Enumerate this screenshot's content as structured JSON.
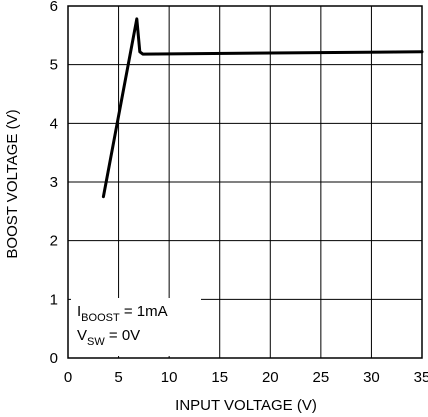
{
  "chart_data": {
    "type": "line",
    "xlabel": "INPUT VOLTAGE (V)",
    "ylabel": "BOOST VOLTAGE (V)",
    "xlim": [
      0,
      35
    ],
    "ylim": [
      0,
      6
    ],
    "x_ticks": [
      "0",
      "5",
      "10",
      "15",
      "20",
      "25",
      "30",
      "35"
    ],
    "y_ticks": [
      "0",
      "1",
      "2",
      "3",
      "4",
      "5",
      "6"
    ],
    "grid": true,
    "series": [
      {
        "x": [
          3.5,
          6.8,
          7.1,
          7.4,
          35
        ],
        "y": [
          2.75,
          5.78,
          5.22,
          5.18,
          5.22
        ]
      }
    ],
    "annotations": [
      {
        "prefix": "I",
        "sub": "BOOST",
        "suffix": " = 1mA"
      },
      {
        "prefix": "V",
        "sub": "SW",
        "suffix": " = 0V"
      }
    ]
  }
}
